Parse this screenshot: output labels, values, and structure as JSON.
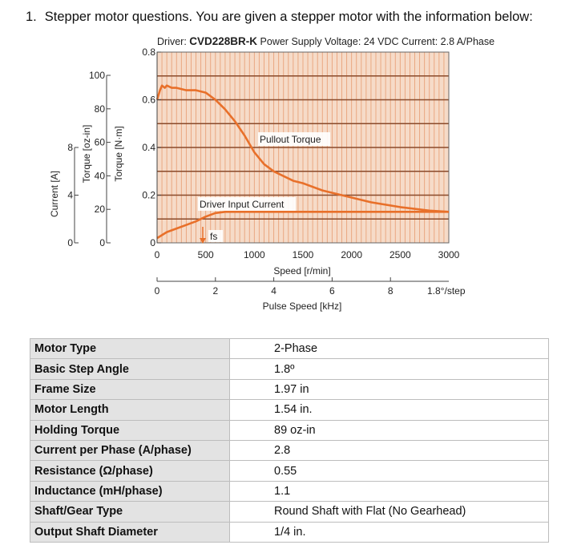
{
  "question": {
    "number": "1.",
    "text": "Stepper motor questions.  You are given a stepper motor with the information below:"
  },
  "chart_data": {
    "type": "line",
    "title_prefix": "Driver: ",
    "title_driver": "CVD228BR-K",
    "title_suffix": " Power Supply Voltage: 24 VDC  Current: 2.8 A/Phase",
    "xlabel": "Speed [r/min]",
    "xlim": [
      0,
      3000
    ],
    "xticks": [
      "0",
      "500",
      "1000",
      "1500",
      "2000",
      "2500",
      "3000"
    ],
    "ylim_nm": [
      0,
      0.8
    ],
    "axes": {
      "current": {
        "label": "Current [A]",
        "ticks": [
          "0",
          "4",
          "8"
        ]
      },
      "torque_ozin": {
        "label": "Torque [oz-in]",
        "ticks": [
          "0",
          "20",
          "40",
          "60",
          "80",
          "100"
        ]
      },
      "torque_nm": {
        "label": "Torque [N·m]",
        "ticks": [
          "0",
          "0.2",
          "0.4",
          "0.6",
          "0.8"
        ]
      }
    },
    "pulse_axis": {
      "label": "Pulse Speed [kHz]",
      "ticks": [
        "0",
        "2",
        "4",
        "6",
        "8"
      ],
      "step_note": "1.8°/step"
    },
    "grid": true,
    "line_color": "#e8702a",
    "grid_fill": "#f6dbc8",
    "grid_line_color": "#e8a27a",
    "annotations": {
      "pullout": "Pullout Torque",
      "current": "Driver Input Current",
      "fs": "fs"
    },
    "series": [
      {
        "name": "Pullout Torque",
        "x": [
          0,
          30,
          50,
          80,
          100,
          150,
          200,
          300,
          400,
          500,
          600,
          700,
          800,
          900,
          1000,
          1100,
          1200,
          1300,
          1400,
          1500,
          1700,
          2000,
          2200,
          2500,
          2800,
          3000
        ],
        "y": [
          0.6,
          0.64,
          0.66,
          0.65,
          0.66,
          0.65,
          0.65,
          0.64,
          0.64,
          0.63,
          0.6,
          0.56,
          0.51,
          0.45,
          0.38,
          0.33,
          0.3,
          0.28,
          0.26,
          0.25,
          0.22,
          0.19,
          0.17,
          0.15,
          0.135,
          0.13
        ]
      },
      {
        "name": "Driver Input Current",
        "x": [
          0,
          100,
          200,
          300,
          400,
          500,
          600,
          700,
          800,
          900,
          1000,
          1200,
          1500,
          2000,
          2500,
          3000
        ],
        "y": [
          0.02,
          0.045,
          0.06,
          0.075,
          0.09,
          0.11,
          0.125,
          0.13,
          0.13,
          0.13,
          0.13,
          0.13,
          0.13,
          0.13,
          0.13,
          0.13
        ]
      }
    ]
  },
  "specs": [
    {
      "label": "Motor Type",
      "value": "2-Phase"
    },
    {
      "label": "Basic Step Angle",
      "value": "1.8º"
    },
    {
      "label": "Frame Size",
      "value": "1.97 in"
    },
    {
      "label": "Motor Length",
      "value": "1.54 in."
    },
    {
      "label": "Holding Torque",
      "value": "89 oz-in"
    },
    {
      "label": "Current per Phase (A/phase)",
      "value": "2.8"
    },
    {
      "label": "Resistance (Ω/phase)",
      "value": "0.55"
    },
    {
      "label": "Inductance (mH/phase)",
      "value": "1.1"
    },
    {
      "label": "Shaft/Gear Type",
      "value": "Round Shaft with Flat (No Gearhead)"
    },
    {
      "label": "Output Shaft Diameter",
      "value": "1/4 in."
    }
  ]
}
